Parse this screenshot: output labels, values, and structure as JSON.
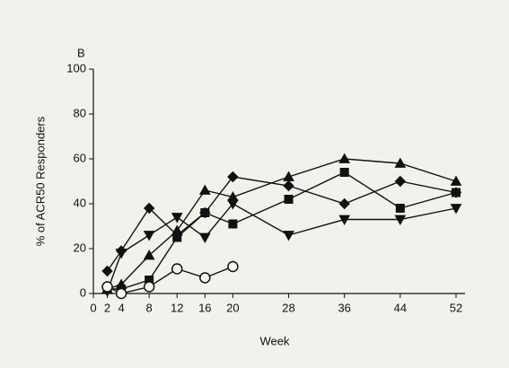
{
  "chart_data": {
    "type": "line",
    "panel_label": "B",
    "ylabel": "% of ACR50 Responders",
    "xlabel": "Week",
    "xlim": [
      0,
      52
    ],
    "xticks": [
      0,
      2,
      4,
      8,
      12,
      16,
      20,
      28,
      36,
      44,
      52
    ],
    "ylim": [
      0,
      100
    ],
    "yticks": [
      0,
      20,
      40,
      60,
      80,
      100
    ],
    "series": [
      {
        "color": "#111111",
        "marker": "diamond",
        "x": [
          2,
          4,
          8,
          12,
          16,
          20,
          28,
          36,
          44,
          52
        ],
        "values": [
          10,
          19,
          38,
          26,
          36,
          52,
          48,
          40,
          50,
          45
        ]
      },
      {
        "color": "#111111",
        "marker": "triangle",
        "x": [
          2,
          4,
          8,
          12,
          16,
          20,
          28,
          36,
          44,
          52
        ],
        "values": [
          2,
          4,
          17,
          28,
          46,
          43,
          52,
          60,
          58,
          50
        ]
      },
      {
        "color": "#111111",
        "marker": "triangle-down",
        "x": [
          2,
          4,
          8,
          12,
          16,
          20,
          28,
          36,
          44,
          52
        ],
        "values": [
          1,
          18,
          26,
          34,
          25,
          40,
          26,
          33,
          33,
          38
        ]
      },
      {
        "color": "#111111",
        "marker": "square",
        "x": [
          2,
          4,
          8,
          12,
          16,
          20,
          28,
          36,
          44,
          52
        ],
        "values": [
          2,
          2,
          6,
          25,
          36,
          31,
          42,
          54,
          38,
          45
        ]
      },
      {
        "color": "#111111",
        "marker": "circle",
        "x": [
          2,
          4,
          8,
          12,
          16,
          20
        ],
        "values": [
          3,
          0,
          3,
          11,
          7,
          12
        ]
      }
    ]
  }
}
